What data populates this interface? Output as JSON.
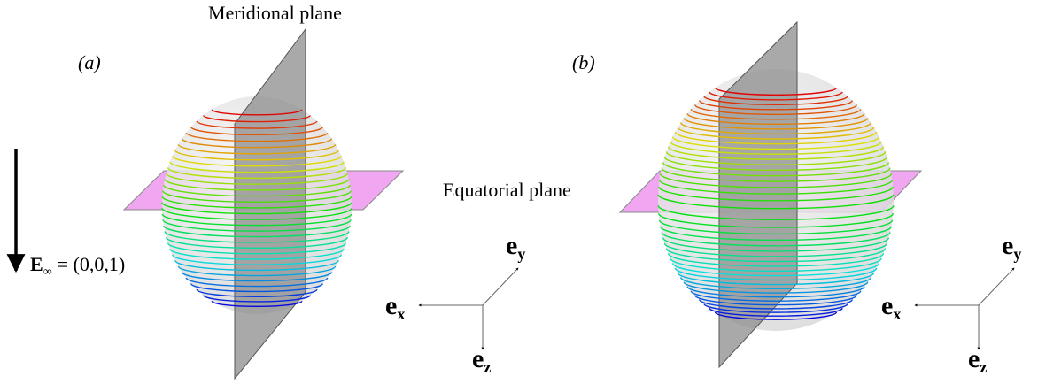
{
  "figure": {
    "meridional_label": "Meridional plane",
    "equatorial_label": "Equatorial plane",
    "field": {
      "symbol": "E",
      "sub": "∞",
      "rest": "= (0,0,1)"
    },
    "panels": [
      {
        "label": "(a)",
        "axes": {
          "x": {
            "base": "e",
            "sub": "x"
          },
          "y": {
            "base": "e",
            "sub": "y"
          },
          "z": {
            "base": "e",
            "sub": "z"
          }
        }
      },
      {
        "label": "(b)",
        "axes": {
          "x": {
            "base": "e",
            "sub": "x"
          },
          "y": {
            "base": "e",
            "sub": "y"
          },
          "z": {
            "base": "e",
            "sub": "z"
          }
        }
      }
    ]
  }
}
